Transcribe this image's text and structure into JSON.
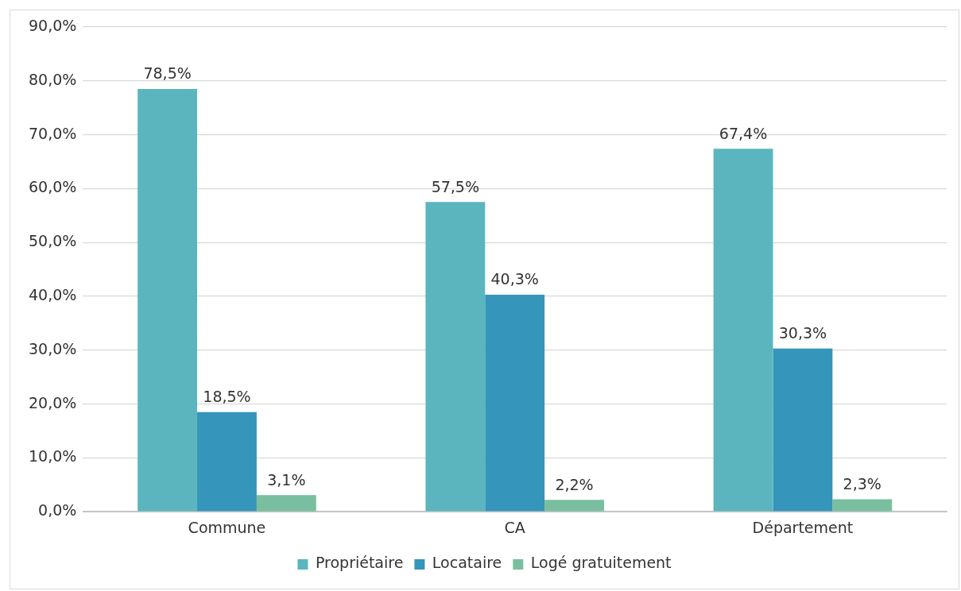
{
  "chart_data": {
    "type": "bar",
    "categories": [
      "Commune",
      "CA",
      "Département"
    ],
    "series": [
      {
        "name": "Propriétaire",
        "color": "#5ab5bf",
        "values": [
          78.5,
          57.5,
          67.4
        ],
        "value_labels": [
          "78,5%",
          "57,5%",
          "67,4%"
        ]
      },
      {
        "name": "Locataire",
        "color": "#3595bb",
        "values": [
          18.5,
          40.3,
          30.3
        ],
        "value_labels": [
          "18,5%",
          "40,3%",
          "30,3%"
        ]
      },
      {
        "name": "Logé gratuitement",
        "color": "#79bf9f",
        "values": [
          3.1,
          2.2,
          2.3
        ],
        "value_labels": [
          "3,1%",
          "2,2%",
          "2,3%"
        ]
      }
    ],
    "ylim": [
      0,
      90
    ],
    "yticks": [
      {
        "value": 0,
        "label": "0,0%"
      },
      {
        "value": 10,
        "label": "10,0%"
      },
      {
        "value": 20,
        "label": "20,0%"
      },
      {
        "value": 30,
        "label": "30,0%"
      },
      {
        "value": 40,
        "label": "40,0%"
      },
      {
        "value": 50,
        "label": "50,0%"
      },
      {
        "value": 60,
        "label": "60,0%"
      },
      {
        "value": 70,
        "label": "70,0%"
      },
      {
        "value": 80,
        "label": "80,0%"
      },
      {
        "value": 90,
        "label": "90,0%"
      }
    ],
    "grid": "y",
    "legend": "bottom"
  }
}
